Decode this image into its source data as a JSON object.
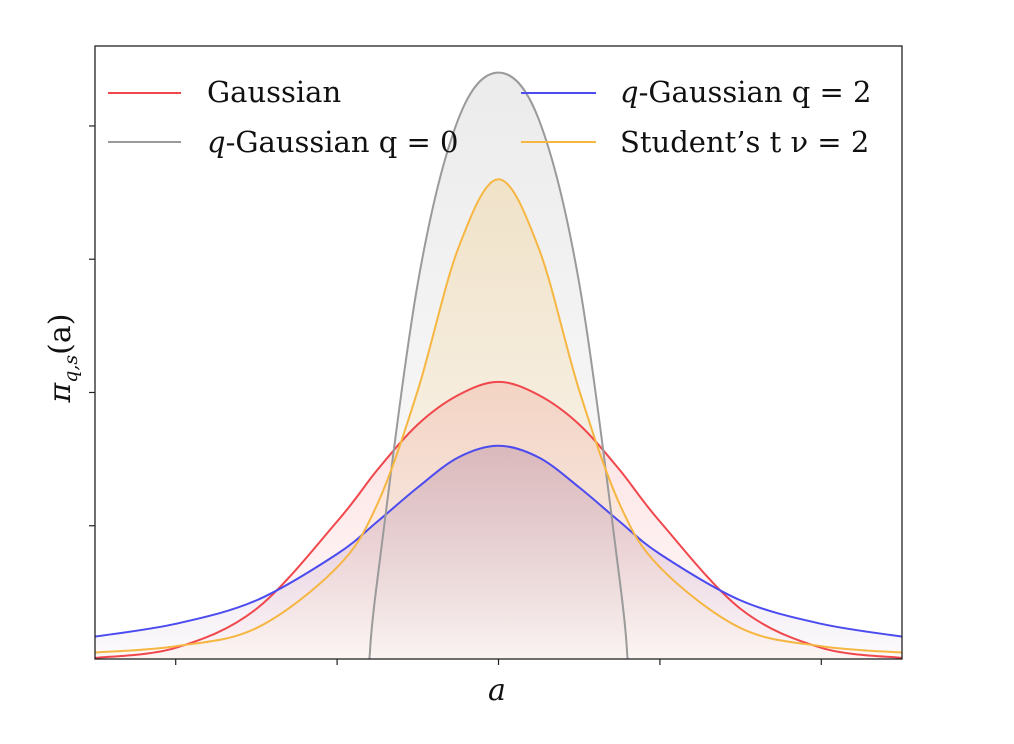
{
  "chart_data": {
    "type": "area",
    "title": "",
    "xlabel": "a",
    "ylabel_symbol": "π",
    "ylabel_subscript": "q,s",
    "ylabel_argument": "(a)",
    "xlim": [
      -2.5,
      2.5
    ],
    "ylim": [
      0,
      1.15
    ],
    "x_ticks": [
      -2.0,
      -1.0,
      0.0,
      1.0,
      2.0
    ],
    "y_ticks": [
      0.25,
      0.5,
      0.75,
      1.0
    ],
    "tick_labels_shown": false,
    "grid": false,
    "legend": "top, 2 columns",
    "legend_labels": {
      "gaussian": "Gaussian",
      "q0_prefix": "q",
      "q0_text": "-Gaussian ",
      "q0_param": "q = 0",
      "q2_prefix": "q",
      "q2_text": "-Gaussian ",
      "q2_param": "q = 2",
      "student_text": "Student’s t ",
      "student_param": "ν = 2"
    },
    "series": [
      {
        "name": "Gaussian",
        "color": "#f0474c",
        "fill": "#f0474c",
        "x": [
          -2.5,
          -2.0,
          -1.5,
          -1.0,
          -0.75,
          -0.5,
          -0.25,
          0.0,
          0.25,
          0.5,
          0.75,
          1.0,
          1.5,
          2.0,
          2.5
        ],
        "values": [
          0.002,
          0.021,
          0.094,
          0.258,
          0.355,
          0.44,
          0.495,
          0.52,
          0.495,
          0.44,
          0.355,
          0.258,
          0.094,
          0.021,
          0.002
        ]
      },
      {
        "name": "q-Gaussian q = 2",
        "color": "#4b4bef",
        "fill": "#8a4fa6",
        "x": [
          -2.5,
          -2.0,
          -1.5,
          -1.0,
          -0.75,
          -0.5,
          -0.25,
          0.0,
          0.25,
          0.5,
          0.75,
          1.0,
          1.5,
          2.0,
          2.5
        ],
        "values": [
          0.042,
          0.066,
          0.11,
          0.197,
          0.258,
          0.322,
          0.378,
          0.4,
          0.378,
          0.322,
          0.258,
          0.197,
          0.11,
          0.066,
          0.042
        ]
      },
      {
        "name": "q-Gaussian q = 0",
        "color": "#9a9a9a",
        "fill": "#b4b4b4",
        "x": [
          -0.8,
          -0.75,
          -0.5,
          -0.25,
          0.0,
          0.25,
          0.5,
          0.75,
          0.8
        ],
        "values": [
          0.0,
          0.15,
          0.705,
          1.012,
          1.1,
          1.012,
          0.705,
          0.15,
          0.0
        ]
      },
      {
        "name": "Student’s t ν = 2",
        "color": "#f6b642",
        "fill": "#f6b642",
        "x": [
          -2.5,
          -2.0,
          -1.5,
          -1.0,
          -0.75,
          -0.5,
          -0.25,
          0.0,
          0.25,
          0.5,
          0.75,
          1.0,
          1.5,
          2.0,
          2.5
        ],
        "values": [
          0.012,
          0.024,
          0.058,
          0.172,
          0.291,
          0.504,
          0.77,
          0.9,
          0.77,
          0.504,
          0.291,
          0.172,
          0.058,
          0.024,
          0.012
        ]
      }
    ]
  }
}
